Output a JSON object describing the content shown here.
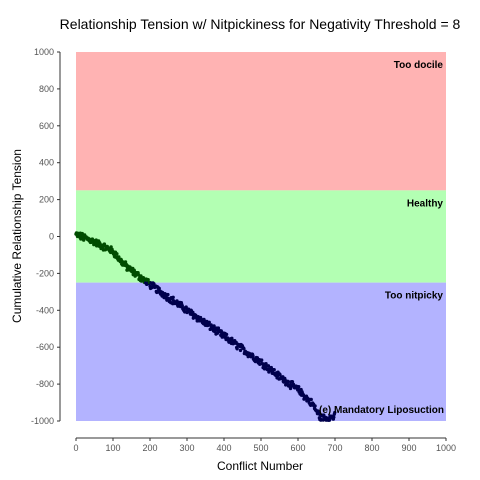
{
  "chart_data": {
    "type": "scatter",
    "title": "Relationship Tension w/ Nitpickiness for Negativity Threshold = 8",
    "xlabel": "Conflict Number",
    "ylabel": "Cumulative Relationship Tension",
    "xlim": [
      0,
      1000
    ],
    "ylim": [
      -1000,
      1000
    ],
    "xticks": [
      0,
      100,
      200,
      300,
      400,
      500,
      600,
      700,
      800,
      900,
      1000
    ],
    "yticks": [
      -1000,
      -800,
      -600,
      -400,
      -200,
      0,
      200,
      400,
      600,
      800,
      1000
    ],
    "grid": false,
    "bands": [
      {
        "label": "Too docile",
        "ymin": 250,
        "ymax": 1000,
        "color": "#ffb3b3"
      },
      {
        "label": "Healthy",
        "ymin": -250,
        "ymax": 250,
        "color": "#b3ffb3"
      },
      {
        "label": "Too nitpicky",
        "ymin": -1000,
        "ymax": -250,
        "color": "#b3b3ff"
      }
    ],
    "annotation": {
      "label": "(e) Mandatory Liposuction",
      "x": 675,
      "y": -950
    },
    "point_colors": {
      "healthy": "#004d00",
      "nitpicky": "#00004d"
    },
    "trend": [
      [
        0,
        10
      ],
      [
        20,
        -5
      ],
      [
        40,
        -20
      ],
      [
        60,
        -40
      ],
      [
        80,
        -60
      ],
      [
        100,
        -80
      ],
      [
        120,
        -130
      ],
      [
        140,
        -170
      ],
      [
        160,
        -200
      ],
      [
        180,
        -230
      ],
      [
        200,
        -260
      ],
      [
        250,
        -330
      ],
      [
        300,
        -400
      ],
      [
        350,
        -470
      ],
      [
        400,
        -540
      ],
      [
        450,
        -610
      ],
      [
        500,
        -680
      ],
      [
        550,
        -760
      ],
      [
        600,
        -830
      ],
      [
        640,
        -910
      ],
      [
        660,
        -980
      ],
      [
        680,
        -985
      ],
      [
        700,
        -975
      ]
    ],
    "series": [
      {
        "values": "see trend"
      }
    ]
  }
}
